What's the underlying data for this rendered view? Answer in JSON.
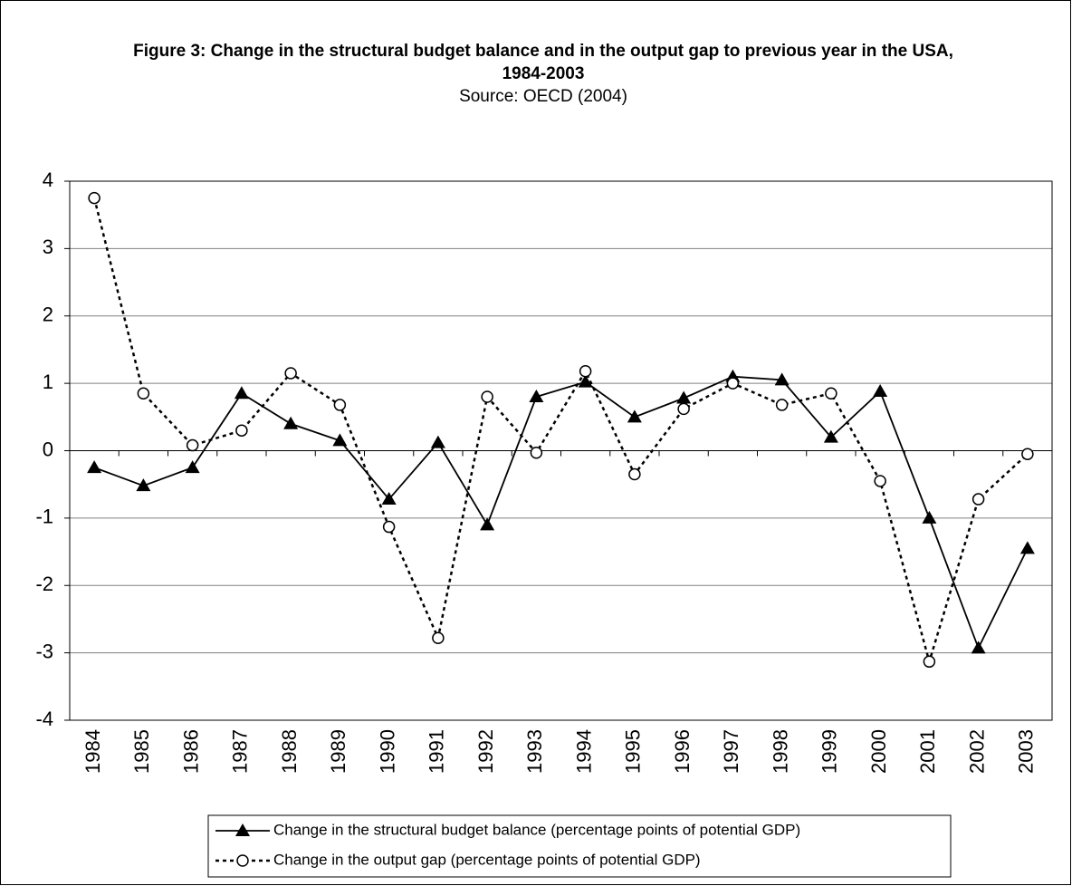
{
  "chart_data": {
    "type": "line",
    "title": "Figure 3: Change in the structural budget balance and in the output gap to previous year in the USA, 1984-2003",
    "subtitle": "Source: OECD (2004)",
    "categories": [
      "1984",
      "1985",
      "1986",
      "1987",
      "1988",
      "1989",
      "1990",
      "1991",
      "1992",
      "1993",
      "1994",
      "1995",
      "1996",
      "1997",
      "1998",
      "1999",
      "2000",
      "2001",
      "2002",
      "2003"
    ],
    "series": [
      {
        "name": "Change in the structural budget balance (percentage points of potential GDP)",
        "color": "#000000",
        "marker": "triangle",
        "dash": "solid",
        "values": [
          -0.25,
          -0.52,
          -0.25,
          0.85,
          0.4,
          0.15,
          -0.72,
          0.12,
          -1.1,
          0.8,
          1.02,
          0.5,
          0.78,
          1.1,
          1.05,
          0.2,
          0.88,
          -1.0,
          -2.93,
          -1.45
        ]
      },
      {
        "name": "Change in the output gap (percentage points of potential GDP)",
        "color": "#000000",
        "marker": "circle",
        "dash": "dotted",
        "values": [
          3.75,
          0.85,
          0.08,
          0.3,
          1.15,
          0.68,
          -1.13,
          -2.78,
          0.8,
          -0.03,
          1.18,
          -0.35,
          0.62,
          1.0,
          0.68,
          0.85,
          -0.45,
          -3.13,
          -0.72,
          -0.05
        ]
      }
    ],
    "ylim": [
      -4,
      4
    ],
    "yticks": [
      -4,
      -3,
      -2,
      -1,
      0,
      1,
      2,
      3,
      4
    ],
    "grid": true
  }
}
